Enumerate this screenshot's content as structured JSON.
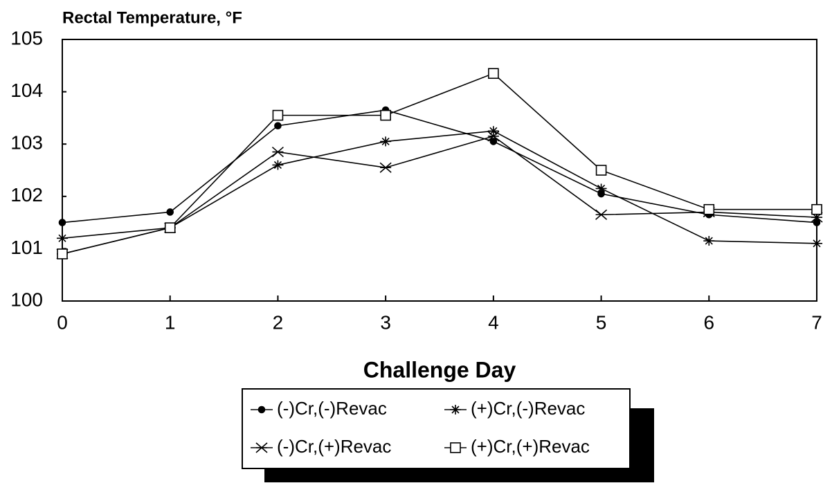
{
  "chart_data": {
    "type": "line",
    "title": "Rectal Temperature, °F",
    "x_label": "Challenge Day",
    "x": [
      0,
      1,
      2,
      3,
      4,
      5,
      6,
      7
    ],
    "xlim": [
      0,
      7
    ],
    "xticks": [
      0,
      1,
      2,
      3,
      4,
      5,
      6,
      7
    ],
    "ylim": [
      100,
      105
    ],
    "yticks": [
      100,
      101,
      102,
      103,
      104,
      105
    ],
    "grid": false,
    "legend": "bottom",
    "series": [
      {
        "name": "(-)Cr,(-)Revac",
        "color": "#000000",
        "marker": "dot",
        "values": [
          101.5,
          101.7,
          103.35,
          103.65,
          103.05,
          102.05,
          101.65,
          101.5
        ]
      },
      {
        "name": "(+)Cr,(-)Revac",
        "color": "#000000",
        "marker": "star",
        "values": [
          101.2,
          101.4,
          102.6,
          103.05,
          103.25,
          102.15,
          101.15,
          101.1
        ]
      },
      {
        "name": "(-)Cr,(+)Revac",
        "color": "#000000",
        "marker": "x",
        "values": [
          100.9,
          101.4,
          102.85,
          102.55,
          103.15,
          101.65,
          101.7,
          101.6
        ]
      },
      {
        "name": "(+)Cr,(+)Revac",
        "color": "#000000",
        "marker": "square",
        "values": [
          100.9,
          101.4,
          103.55,
          103.55,
          104.35,
          102.5,
          101.75,
          101.75
        ]
      }
    ]
  }
}
